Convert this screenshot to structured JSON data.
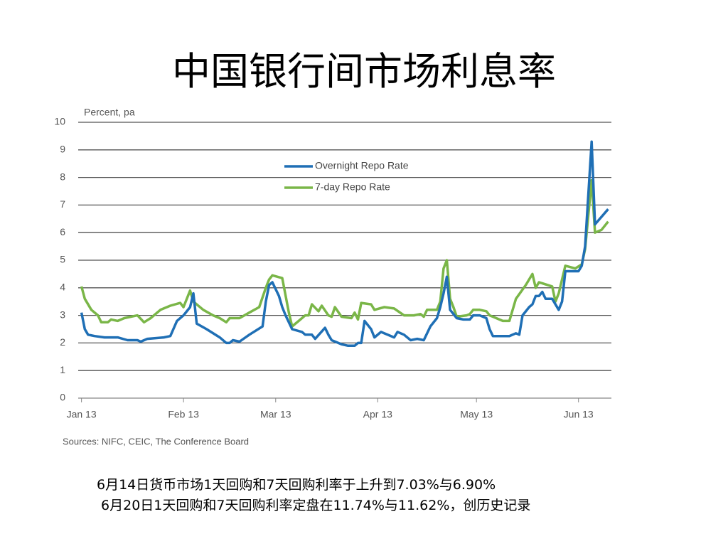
{
  "title": "中国银行间市场利息率",
  "chart_data": {
    "type": "line",
    "ylabel": "Percent, pa",
    "source": "Sources: NIFC, CEIC, The Conference Board",
    "legend": "upper center",
    "grid": true,
    "xlim": [
      -1,
      161
    ],
    "xticks": [
      {
        "value": 0,
        "label": "Jan 13"
      },
      {
        "value": 31,
        "label": "Feb 13"
      },
      {
        "value": 59,
        "label": "Mar 13"
      },
      {
        "value": 90,
        "label": "Apr 13"
      },
      {
        "value": 120,
        "label": "May 13"
      },
      {
        "value": 151,
        "label": "Jun 13"
      }
    ],
    "ylim": [
      0,
      10
    ],
    "yticks": [
      0,
      1,
      2,
      3,
      4,
      5,
      6,
      7,
      8,
      9,
      10
    ],
    "series": [
      {
        "name": "Overnight Repo Rate",
        "color": "#1f6fb5",
        "x": [
          0,
          1,
          2,
          4,
          7,
          11,
          14,
          17,
          18,
          20,
          25,
          27,
          29,
          31,
          33,
          34,
          35,
          38,
          42,
          44,
          45,
          46,
          48,
          51,
          55,
          56,
          57,
          58,
          60,
          61,
          62,
          64,
          67,
          68,
          70,
          71,
          74,
          75,
          76,
          79,
          81,
          83,
          84,
          85,
          86,
          88,
          89,
          91,
          93,
          95,
          96,
          98,
          100,
          102,
          104,
          106,
          108,
          109,
          110,
          111,
          112,
          114,
          116,
          118,
          119,
          121,
          123,
          124,
          125,
          128,
          130,
          131,
          132,
          133,
          134,
          136,
          137,
          138,
          139,
          140,
          141,
          143,
          145,
          146,
          147,
          149,
          151,
          152,
          153,
          155,
          156,
          160
        ],
        "values": [
          3.1,
          2.5,
          2.3,
          2.25,
          2.2,
          2.2,
          2.1,
          2.1,
          2.05,
          2.15,
          2.2,
          2.25,
          2.8,
          3.0,
          3.3,
          3.8,
          2.7,
          2.5,
          2.2,
          2.0,
          2.0,
          2.1,
          2.05,
          2.3,
          2.6,
          3.5,
          4.1,
          4.2,
          3.7,
          3.3,
          3.0,
          2.5,
          2.4,
          2.3,
          2.3,
          2.15,
          2.55,
          2.3,
          2.1,
          1.95,
          1.9,
          1.9,
          2.0,
          2.0,
          2.8,
          2.5,
          2.2,
          2.4,
          2.3,
          2.2,
          2.4,
          2.3,
          2.1,
          2.15,
          2.1,
          2.6,
          2.9,
          3.3,
          3.8,
          4.4,
          3.2,
          2.9,
          2.85,
          2.85,
          3.0,
          3.0,
          2.9,
          2.5,
          2.25,
          2.25,
          2.25,
          2.3,
          2.35,
          2.3,
          3.0,
          3.3,
          3.4,
          3.7,
          3.7,
          3.85,
          3.6,
          3.6,
          3.2,
          3.5,
          4.6,
          4.6,
          4.6,
          4.8,
          5.5,
          9.3,
          6.3,
          6.85
        ]
      },
      {
        "name": "7-day Repo Rate",
        "color": "#7ab648",
        "x": [
          0,
          1,
          3,
          5,
          6,
          8,
          9,
          11,
          13,
          17,
          19,
          21,
          24,
          27,
          30,
          31,
          33,
          34,
          37,
          40,
          42,
          44,
          45,
          48,
          51,
          54,
          56,
          57,
          58,
          61,
          63,
          64,
          66,
          68,
          69,
          70,
          72,
          73,
          75,
          76,
          77,
          79,
          82,
          83,
          84,
          85,
          88,
          89,
          92,
          95,
          98,
          101,
          103,
          104,
          105,
          108,
          109,
          110,
          111,
          112,
          113,
          114,
          117,
          118,
          119,
          121,
          123,
          124,
          125,
          128,
          130,
          132,
          135,
          137,
          138,
          139,
          143,
          144,
          145,
          147,
          150,
          152,
          153,
          155,
          156,
          158,
          160
        ],
        "values": [
          4.05,
          3.6,
          3.2,
          3.0,
          2.75,
          2.75,
          2.85,
          2.8,
          2.9,
          3.0,
          2.75,
          2.9,
          3.2,
          3.35,
          3.45,
          3.3,
          3.9,
          3.5,
          3.2,
          3.0,
          2.9,
          2.75,
          2.9,
          2.9,
          3.1,
          3.3,
          4.0,
          4.3,
          4.45,
          4.35,
          3.1,
          2.6,
          2.8,
          3.0,
          3.0,
          3.4,
          3.15,
          3.35,
          3.0,
          2.95,
          3.3,
          2.95,
          2.9,
          3.1,
          2.85,
          3.45,
          3.4,
          3.2,
          3.3,
          3.25,
          3.0,
          3.0,
          3.05,
          2.95,
          3.2,
          3.2,
          3.5,
          4.7,
          5.0,
          3.6,
          3.3,
          2.95,
          3.0,
          3.05,
          3.2,
          3.2,
          3.15,
          3.0,
          2.95,
          2.8,
          2.8,
          3.6,
          4.1,
          4.5,
          4.0,
          4.2,
          4.05,
          3.5,
          3.8,
          4.8,
          4.7,
          4.85,
          5.4,
          7.9,
          6.0,
          6.1,
          6.4
        ]
      }
    ]
  },
  "notes": [
    "6月14日货币市场1天回购和7天回购利率于上升到7.03%与6.90%",
    " 6月20日1天回购和7天回购利率定盘在11.74%与11.62%，创历史记录"
  ]
}
